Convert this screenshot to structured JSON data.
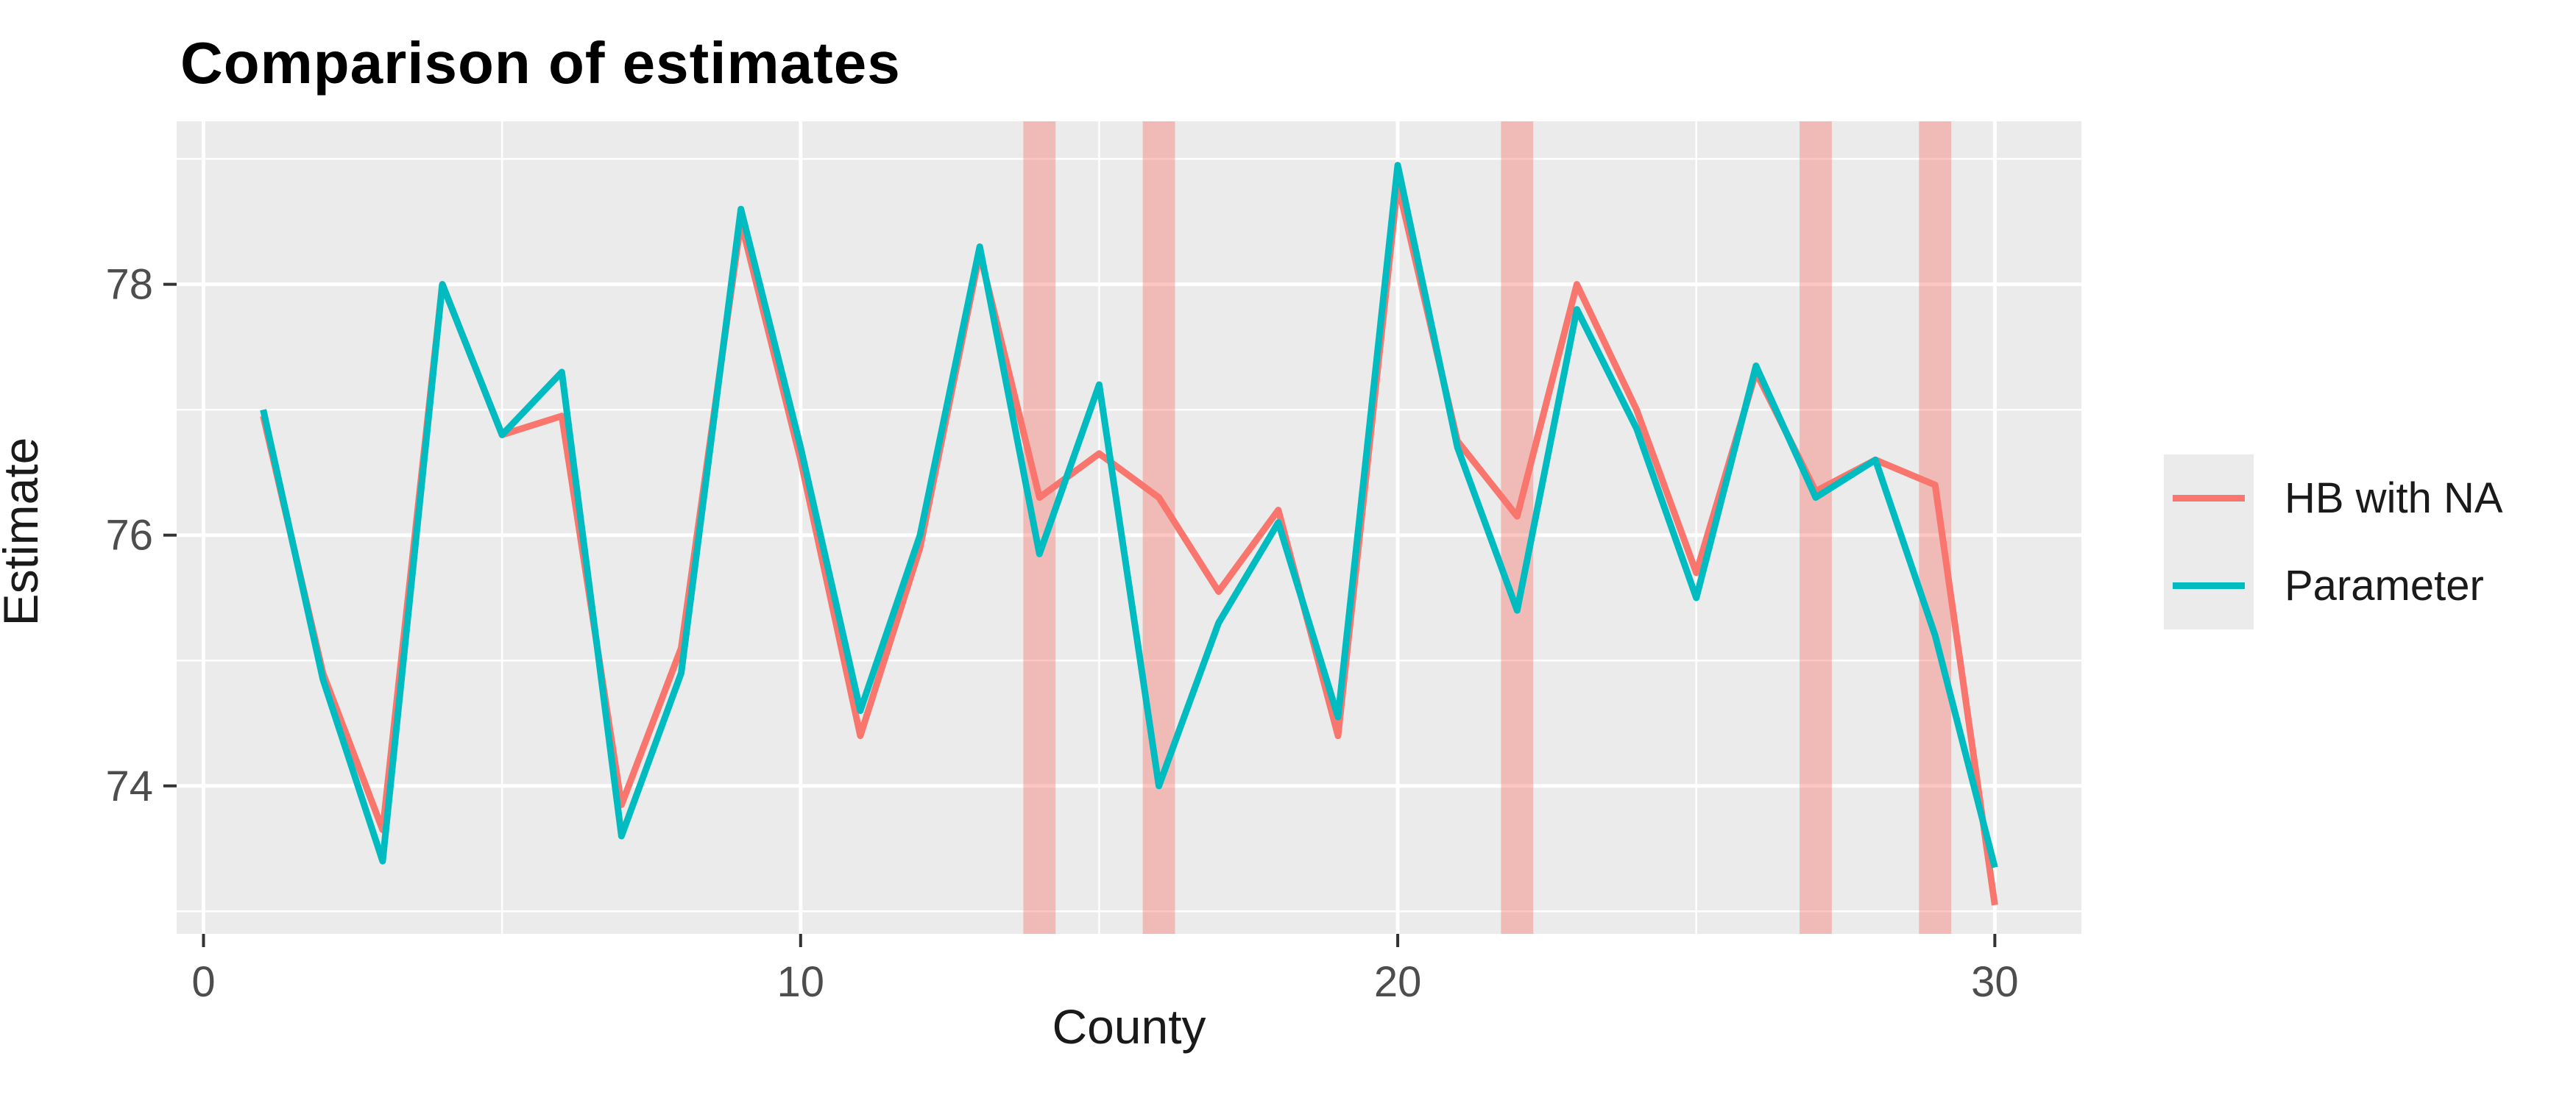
{
  "title": "Comparison of estimates",
  "x_axis": {
    "label": "County",
    "tick_labels": [
      "0",
      "10",
      "20",
      "30"
    ],
    "ticks": [
      0,
      10,
      20,
      30
    ],
    "minor_ticks": [
      5,
      15,
      25
    ],
    "domain": [
      -0.45,
      31.45
    ]
  },
  "y_axis": {
    "label": "Estimate",
    "tick_labels": [
      "74",
      "76",
      "78"
    ],
    "ticks": [
      74,
      76,
      78
    ],
    "minor_ticks": [
      73,
      75,
      77,
      79
    ],
    "domain": [
      72.82,
      79.3
    ]
  },
  "legend": {
    "items": [
      {
        "label": "HB with NA",
        "color": "#F8766D"
      },
      {
        "label": "Parameter",
        "color": "#00BCC0"
      }
    ]
  },
  "colors": {
    "hb_line": "#F8766D",
    "parameter_line": "#00BCC0",
    "na_band": "rgba(248,118,109,0.42)",
    "panel_background": "#EBEBEB",
    "gridline": "#FFFFFF",
    "tick_label": "#4D4D4D",
    "tick_mark": "#333333",
    "axis_title": "#1a1a1a",
    "title": "#000000"
  },
  "chart_data": {
    "type": "line",
    "title": "Comparison of estimates",
    "xlabel": "County",
    "ylabel": "Estimate",
    "x": [
      1,
      2,
      3,
      4,
      5,
      6,
      7,
      8,
      9,
      10,
      11,
      12,
      13,
      14,
      15,
      16,
      17,
      18,
      19,
      20,
      21,
      22,
      23,
      24,
      25,
      26,
      27,
      28,
      29,
      30
    ],
    "series": [
      {
        "name": "HB with NA",
        "color": "#F8766D",
        "values": [
          76.95,
          74.9,
          73.65,
          78.0,
          76.8,
          76.95,
          73.85,
          75.1,
          78.5,
          76.6,
          74.4,
          75.9,
          78.25,
          76.3,
          76.65,
          76.3,
          75.55,
          76.2,
          74.4,
          78.8,
          76.75,
          76.15,
          78.0,
          77.0,
          75.7,
          77.3,
          76.35,
          76.6,
          76.4,
          73.05
        ]
      },
      {
        "name": "Parameter",
        "color": "#00BCC0",
        "values": [
          77.0,
          74.85,
          73.4,
          78.0,
          76.8,
          77.3,
          73.6,
          74.9,
          78.6,
          76.7,
          74.6,
          76.0,
          78.3,
          75.85,
          77.2,
          74.0,
          75.3,
          76.1,
          74.55,
          78.95,
          76.7,
          75.4,
          77.8,
          76.85,
          75.5,
          77.35,
          76.3,
          76.6,
          75.2,
          73.35
        ]
      }
    ],
    "na_highlight_counties": [
      14,
      16,
      22,
      27,
      29
    ],
    "na_band_halfwidth": 0.27,
    "xlim": [
      -0.45,
      31.45
    ],
    "ylim": [
      72.82,
      79.3
    ],
    "grid": true,
    "legend_position": "right",
    "panel_background": "#EBEBEB"
  }
}
